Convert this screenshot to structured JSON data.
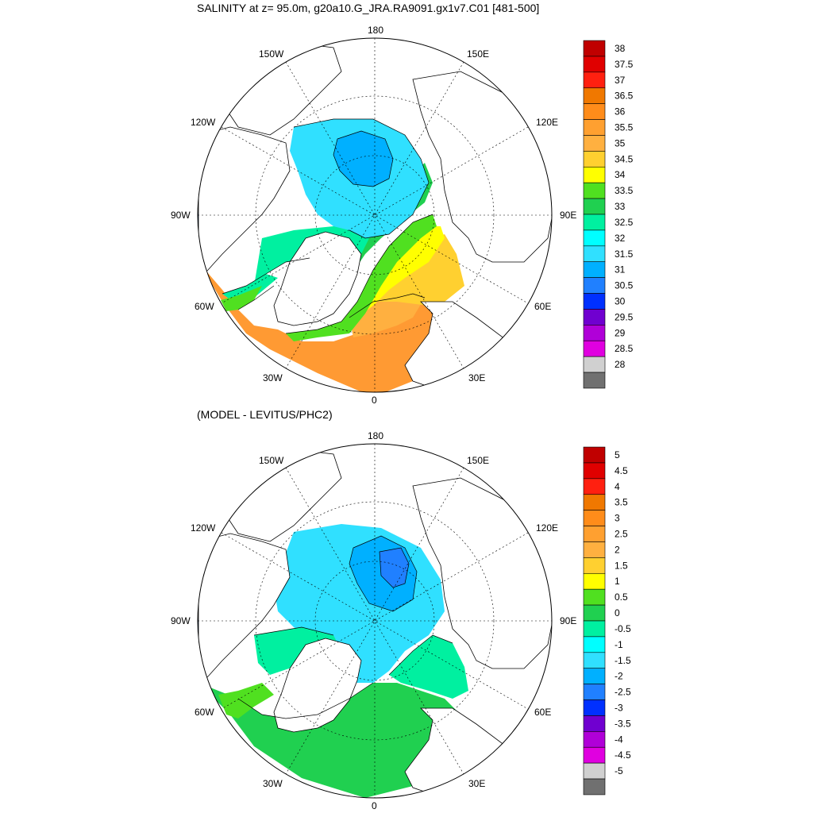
{
  "panels": [
    {
      "title": "SALINITY at z=  95.0m, g20a10.G_JRA.RA9091.gx1v7.C01 [481-500]",
      "lon_labels": {
        "top": "180",
        "bottom": "0",
        "left": "90W",
        "right": "90E",
        "ul1": "150W",
        "ur1": "150E",
        "ul2": "120W",
        "ur2": "120E",
        "ll1": "60W",
        "lr1": "60E",
        "ll2": "30W",
        "lr2": "30E"
      },
      "colorbar": {
        "labels": [
          "38",
          "37.5",
          "37",
          "36.5",
          "36",
          "35.5",
          "35",
          "34.5",
          "34",
          "33.5",
          "33",
          "32.5",
          "32",
          "31.5",
          "31",
          "30.5",
          "30",
          "29.5",
          "29",
          "28.5",
          "28"
        ],
        "colors": [
          "#c00000",
          "#e00000",
          "#ff2010",
          "#f07800",
          "#ff8c1a",
          "#ffa030",
          "#ffb040",
          "#ffd030",
          "#ffff00",
          "#50e020",
          "#20d050",
          "#00f0a0",
          "#00ffff",
          "#30e0ff",
          "#00b0ff",
          "#2080ff",
          "#0030ff",
          "#7000d0",
          "#b000d8",
          "#e000e0",
          "#d0d0d0",
          "#707070"
        ]
      }
    },
    {
      "title": "(MODEL - LEVITUS/PHC2)",
      "lon_labels": {
        "top": "180",
        "bottom": "0",
        "left": "90W",
        "right": "90E",
        "ul1": "150W",
        "ur1": "150E",
        "ul2": "120W",
        "ur2": "120E",
        "ll1": "60W",
        "lr1": "60E",
        "ll2": "30W",
        "lr2": "30E"
      },
      "colorbar": {
        "labels": [
          "5",
          "4.5",
          "4",
          "3.5",
          "3",
          "2.5",
          "2",
          "1.5",
          "1",
          "0.5",
          "0",
          "-0.5",
          "-1",
          "-1.5",
          "-2",
          "-2.5",
          "-3",
          "-3.5",
          "-4",
          "-4.5",
          "-5"
        ],
        "colors": [
          "#c00000",
          "#e00000",
          "#ff2010",
          "#f07800",
          "#ff8c1a",
          "#ffa030",
          "#ffb040",
          "#ffd030",
          "#ffff00",
          "#50e020",
          "#20d050",
          "#00f0a0",
          "#00ffff",
          "#30e0ff",
          "#00b0ff",
          "#2080ff",
          "#0030ff",
          "#7000d0",
          "#b000d8",
          "#e000e0",
          "#d0d0d0",
          "#707070"
        ]
      }
    }
  ]
}
